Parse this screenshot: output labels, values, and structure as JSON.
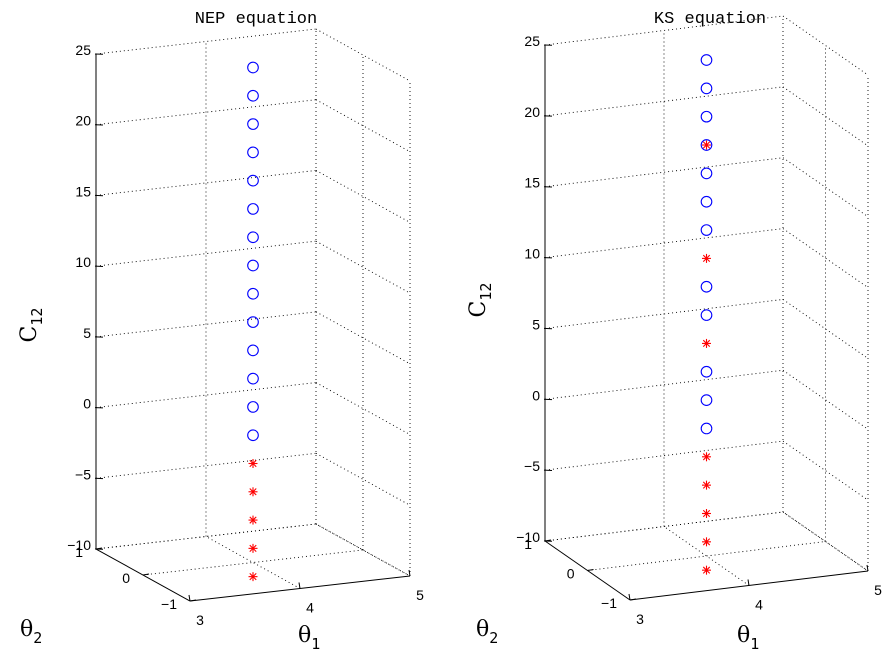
{
  "chart_data": [
    {
      "type": "scatter",
      "title": "NEP equation",
      "xlabel": "θ",
      "xlabel_sub": "1",
      "ylabel": "θ",
      "ylabel_sub": "2",
      "zlabel": "C",
      "zlabel_sub": "12",
      "xlim": [
        3,
        5
      ],
      "ylim": [
        -1,
        1
      ],
      "zlim": [
        -10,
        25
      ],
      "xticks": [
        "3",
        "4",
        "5"
      ],
      "yticks": [
        "−1",
        "0",
        "1"
      ],
      "zticks": [
        "−10",
        "−5",
        "0",
        "5",
        "10",
        "15",
        "20",
        "25"
      ],
      "grid": true,
      "marker_colors": {
        "circle": "#0000ff",
        "star": "#ff0000"
      },
      "series": [
        {
          "marker": "circle",
          "x": [
            4,
            4,
            4,
            4,
            4,
            4,
            4,
            4,
            4,
            4,
            4,
            4,
            4,
            4
          ],
          "y": [
            0,
            0,
            0,
            0,
            0,
            0,
            0,
            0,
            0,
            0,
            0,
            0,
            0,
            0
          ],
          "z": [
            -1,
            1,
            3,
            5,
            7,
            9,
            11,
            13,
            15,
            17,
            19,
            21,
            23,
            25
          ]
        },
        {
          "marker": "star",
          "x": [
            4,
            4,
            4,
            4,
            4
          ],
          "y": [
            0,
            0,
            0,
            0,
            0
          ],
          "z": [
            -11,
            -9,
            -7,
            -5,
            -3
          ]
        }
      ]
    },
    {
      "type": "scatter",
      "title": "KS equation",
      "xlabel": "θ",
      "xlabel_sub": "1",
      "ylabel": "θ",
      "ylabel_sub": "2",
      "zlabel": "C",
      "zlabel_sub": "12",
      "xlim": [
        3,
        5
      ],
      "ylim": [
        -1,
        1
      ],
      "zlim": [
        -10,
        25
      ],
      "xticks": [
        "3",
        "4",
        "5"
      ],
      "yticks": [
        "−1",
        "0",
        "1"
      ],
      "zticks": [
        "−10",
        "−5",
        "0",
        "5",
        "10",
        "15",
        "20",
        "25"
      ],
      "grid": true,
      "marker_colors": {
        "circle": "#0000ff",
        "star": "#ff0000"
      },
      "series": [
        {
          "marker": "circle",
          "x": [
            4,
            4,
            4,
            4,
            4,
            4,
            4,
            4,
            4,
            4,
            4,
            4
          ],
          "y": [
            0,
            0,
            0,
            0,
            0,
            0,
            0,
            0,
            0,
            0,
            0,
            0
          ],
          "z": [
            -1,
            1,
            3,
            7,
            9,
            13,
            15,
            17,
            19,
            21,
            23,
            25
          ]
        },
        {
          "marker": "star",
          "x": [
            4,
            4,
            4,
            4,
            4,
            4,
            4,
            4
          ],
          "y": [
            0,
            0,
            0,
            0,
            0,
            0,
            0,
            0
          ],
          "z": [
            -11,
            -9,
            -7,
            -5,
            -3,
            5,
            11,
            19
          ]
        }
      ]
    }
  ]
}
